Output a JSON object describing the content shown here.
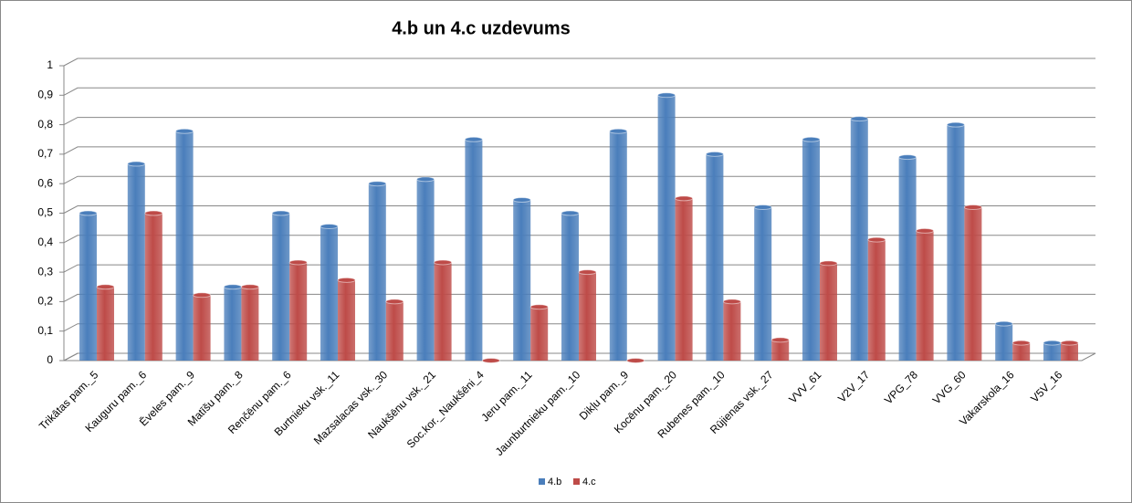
{
  "chart_data": {
    "type": "bar",
    "title": "4.b un 4.c uzdevums",
    "categories": [
      "Trikātas pam._5",
      "Kauguru pam._6",
      "Ēveles pam._9",
      "Matīšu pam._8",
      "Renčēnu pam._6",
      "Burtnieku vsk._11",
      "Mazsalacas vsk._30",
      "Naukšēnu vsk._21",
      "Soc.kor._Naukšēni_4",
      "Jeru pam._11",
      "Jaunburtnieku pam._10",
      "Dikļu pam._9",
      "Kocēnu pam._20",
      "Rubenes pam._10",
      "Rūjienas vsk._27",
      "VVV_61",
      "V2V_17",
      "VPG_78",
      "VVG_60",
      "Vakarskola_16",
      "V5V_16"
    ],
    "series": [
      {
        "name": "4.b",
        "color": "#4a7ebb",
        "values": [
          0.5,
          0.667,
          0.778,
          0.25,
          0.5,
          0.455,
          0.6,
          0.615,
          0.75,
          0.545,
          0.5,
          0.778,
          0.9,
          0.7,
          0.52,
          0.75,
          0.82,
          0.69,
          0.8,
          0.125,
          0.06
        ]
      },
      {
        "name": "4.c",
        "color": "#be4b48",
        "values": [
          0.25,
          0.5,
          0.222,
          0.25,
          0.333,
          0.273,
          0.2,
          0.333,
          0,
          0.182,
          0.3,
          0,
          0.55,
          0.2,
          0.07,
          0.33,
          0.41,
          0.44,
          0.52,
          0.06,
          0.06
        ]
      }
    ],
    "ylim": [
      0,
      1
    ],
    "yticks": [
      0,
      {
        "value": 0.1,
        "label": "0,1"
      },
      {
        "value": 0.2,
        "label": "0,2"
      },
      {
        "value": 0.3,
        "label": "0,3"
      },
      {
        "value": 0.4,
        "label": "0,4"
      },
      {
        "value": 0.5,
        "label": "0,5"
      },
      {
        "value": 0.6,
        "label": "0,6"
      },
      {
        "value": 0.7,
        "label": "0,7"
      },
      {
        "value": 0.8,
        "label": "0,8"
      },
      {
        "value": 0.9,
        "label": "0,9"
      },
      1
    ],
    "grid": true,
    "legend": "bottom"
  }
}
